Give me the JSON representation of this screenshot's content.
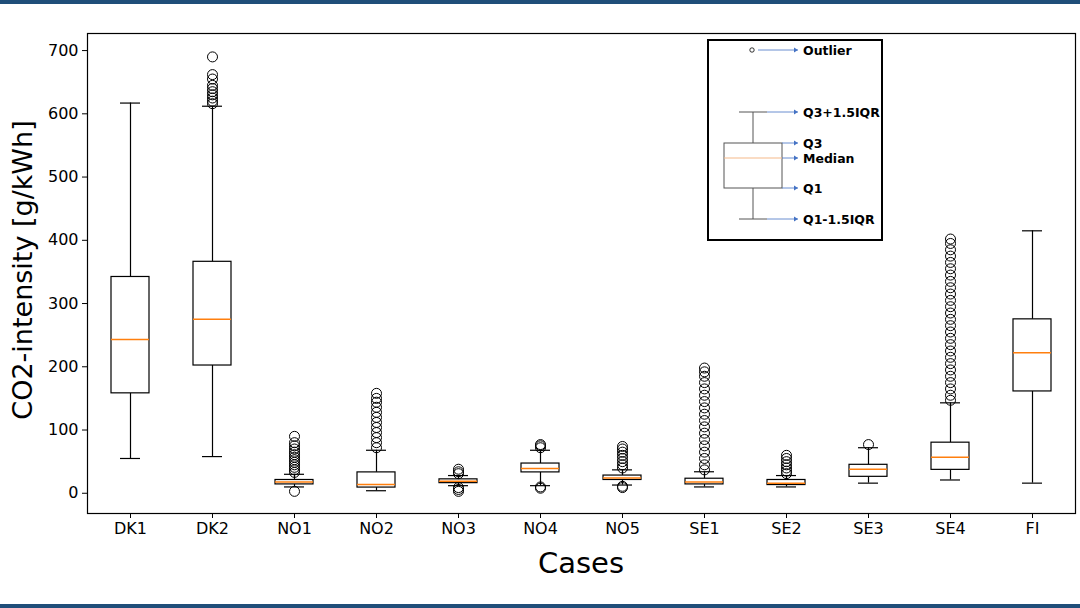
{
  "chart_data": {
    "type": "box",
    "x_label": "Cases",
    "y_label": "CO2-intensity [g/kWh]",
    "categories": [
      "DK1",
      "DK2",
      "NO1",
      "NO2",
      "NO3",
      "NO4",
      "NO5",
      "SE1",
      "SE2",
      "SE3",
      "SE4",
      "FI"
    ],
    "boxes": [
      {
        "low": 55,
        "q1": 158,
        "median": 243,
        "q3": 342,
        "high": 617,
        "outliers": []
      },
      {
        "low": 58,
        "q1": 202,
        "median": 275,
        "q3": 366,
        "high": 612,
        "outliers": [
          616,
          620,
          625,
          630,
          635,
          640,
          645,
          655,
          662,
          690
        ]
      },
      {
        "low": 10,
        "q1": 14,
        "median": 18,
        "q3": 21,
        "high": 30,
        "outliers": [
          3,
          33,
          37,
          41,
          45,
          49,
          53,
          57,
          61,
          65,
          70,
          75,
          80,
          90
        ]
      },
      {
        "low": 4,
        "q1": 9,
        "median": 14,
        "q3": 33,
        "high": 68,
        "outliers": [
          72,
          80,
          88,
          96,
          104,
          112,
          120,
          128,
          136,
          144,
          150,
          158
        ]
      },
      {
        "low": 12,
        "q1": 16,
        "median": 19,
        "q3": 22,
        "high": 28,
        "outliers": [
          3,
          6,
          9,
          31,
          34,
          38
        ]
      },
      {
        "low": 12,
        "q1": 33,
        "median": 39,
        "q3": 47,
        "high": 68,
        "outliers": [
          8,
          10,
          72,
          75,
          77
        ]
      },
      {
        "low": 13,
        "q1": 21,
        "median": 24,
        "q3": 28,
        "high": 37,
        "outliers": [
          9,
          11,
          40,
          45,
          50,
          55,
          60,
          65,
          70,
          74
        ]
      },
      {
        "low": 10,
        "q1": 14,
        "median": 18,
        "q3": 23,
        "high": 34,
        "outliers": [
          37,
          45,
          55,
          65,
          75,
          85,
          95,
          105,
          115,
          125,
          135,
          145,
          155,
          165,
          175,
          185,
          192,
          198
        ]
      },
      {
        "low": 10,
        "q1": 13,
        "median": 16,
        "q3": 21,
        "high": 28,
        "outliers": [
          31,
          35,
          40,
          45,
          50,
          55,
          60
        ]
      },
      {
        "low": 16,
        "q1": 26,
        "median": 38,
        "q3": 45,
        "high": 72,
        "outliers": [
          77
        ]
      },
      {
        "low": 21,
        "q1": 37,
        "median": 57,
        "q3": 80,
        "high": 143,
        "outliers": [
          147,
          155,
          165,
          175,
          185,
          195,
          205,
          215,
          225,
          235,
          245,
          255,
          265,
          275,
          285,
          295,
          305,
          315,
          325,
          335,
          345,
          355,
          365,
          375,
          385,
          395,
          402
        ]
      },
      {
        "low": 16,
        "q1": 161,
        "median": 222,
        "q3": 275,
        "high": 415,
        "outliers": []
      }
    ],
    "color": "#ff7f0e",
    "ylim": [
      -32,
      727
    ],
    "yticks": [
      0,
      100,
      200,
      300,
      400,
      500,
      600,
      700
    ],
    "grid": false,
    "key": {
      "outlier": "Outlier",
      "whisker_high": "Q3+1.5IQR",
      "q3": "Q3",
      "median": "Median",
      "q1": "Q1",
      "whisker_low": "Q1-1.5IQR"
    }
  }
}
